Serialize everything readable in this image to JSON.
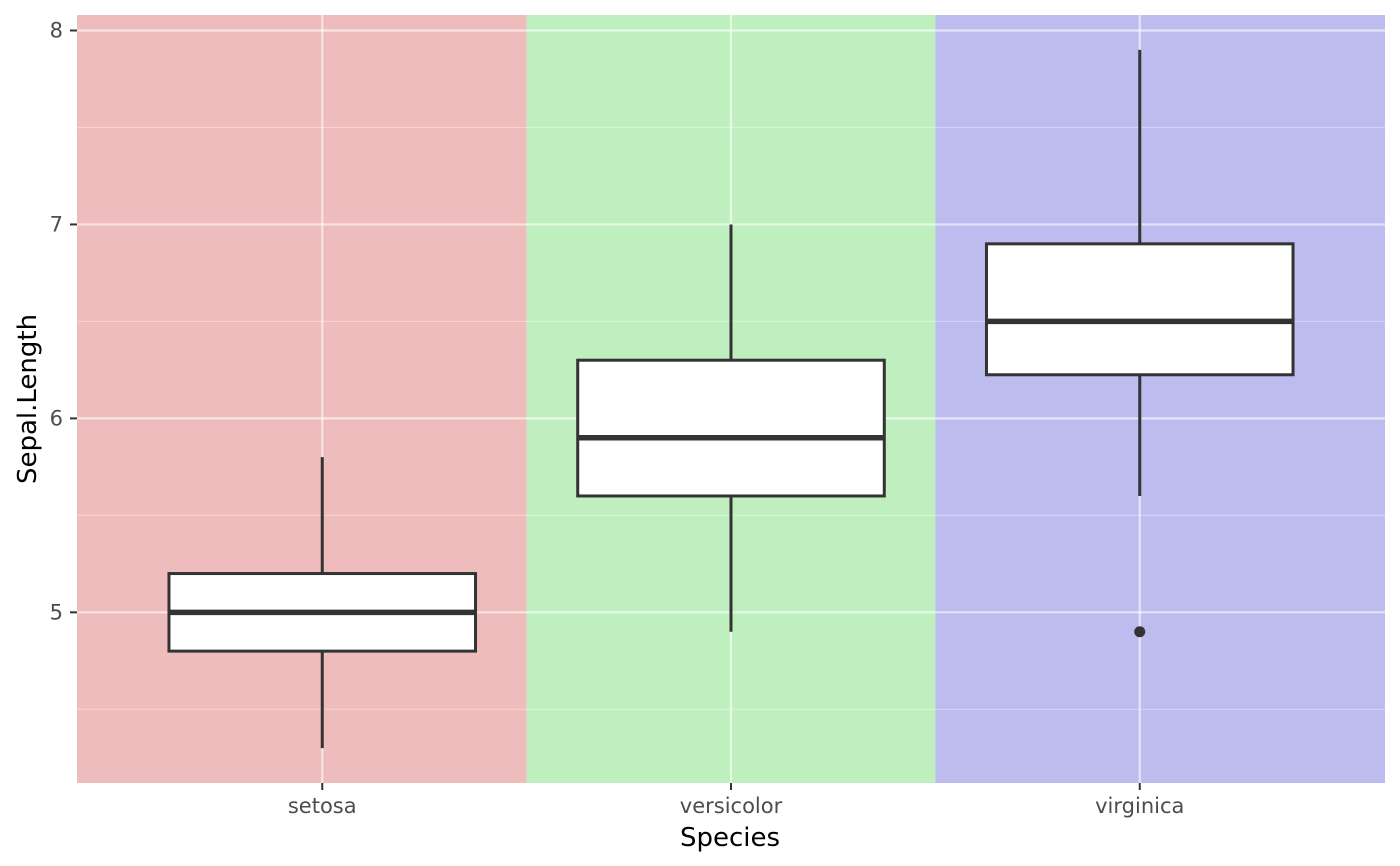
{
  "chart_data": {
    "type": "boxplot",
    "xlabel": "Species",
    "ylabel": "Sepal.Length",
    "categories": [
      "setosa",
      "versicolor",
      "virginica"
    ],
    "ylim": [
      4.12,
      8.08
    ],
    "y_major_ticks": [
      5,
      6,
      7,
      8
    ],
    "y_minor_ticks": [
      4.5,
      5.5,
      6.5,
      7.5
    ],
    "grid": true,
    "background_bands": [
      {
        "category": "setosa",
        "color": "#eebcbc"
      },
      {
        "category": "versicolor",
        "color": "#bfefbf"
      },
      {
        "category": "virginica",
        "color": "#bcbcef"
      }
    ],
    "boxes": [
      {
        "category": "setosa",
        "whisker_low": 4.3,
        "q1": 4.8,
        "median": 5.0,
        "q3": 5.2,
        "whisker_high": 5.8,
        "outliers": []
      },
      {
        "category": "versicolor",
        "whisker_low": 4.9,
        "q1": 5.6,
        "median": 5.9,
        "q3": 6.3,
        "whisker_high": 7.0,
        "outliers": []
      },
      {
        "category": "virginica",
        "whisker_low": 5.6,
        "q1": 6.225,
        "median": 6.5,
        "q3": 6.9,
        "whisker_high": 7.9,
        "outliers": [
          4.9
        ]
      }
    ],
    "colors": {
      "box_fill": "#ffffff",
      "box_line": "#333333",
      "grid_major": "#ffffff",
      "tick_text": "#4d4d4d",
      "title_text": "#000000"
    }
  }
}
